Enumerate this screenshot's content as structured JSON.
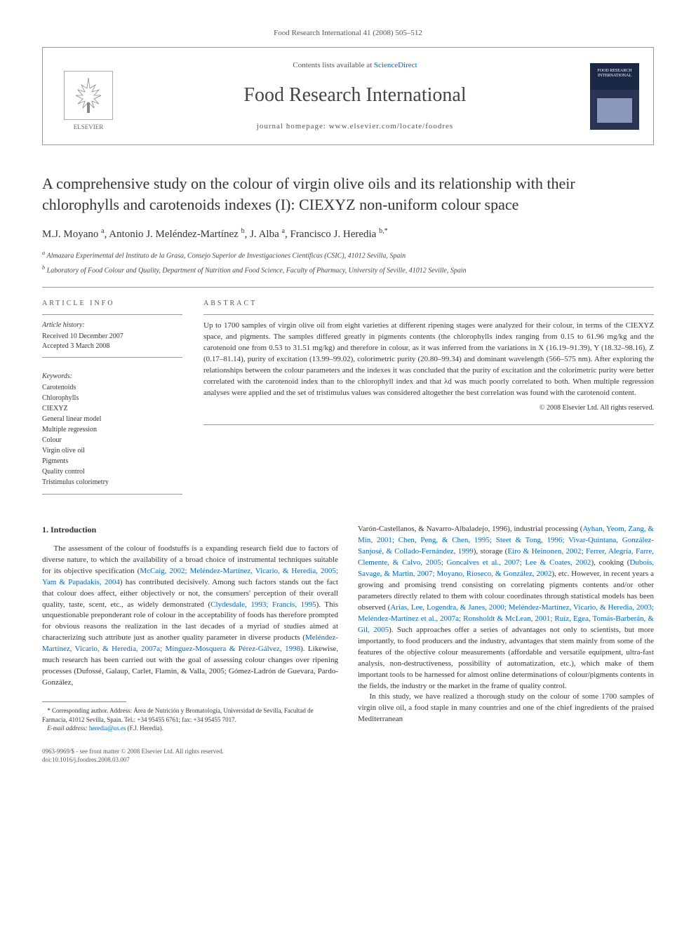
{
  "header_line": "Food Research International 41 (2008) 505–512",
  "contents_prefix": "Contents lists available at ",
  "contents_link": "ScienceDirect",
  "journal_name": "Food Research International",
  "homepage_label": "journal homepage: www.elsevier.com/locate/foodres",
  "elsevier_label": "ELSEVIER",
  "cover_label": "FOOD RESEARCH INTERNATIONAL",
  "title": "A comprehensive study on the colour of virgin olive oils and its relationship with their chlorophylls and carotenoids indexes (I): CIEXYZ non-uniform colour space",
  "authors_html": "M.J. Moyano <sup>a</sup>, Antonio J. Meléndez-Martínez <sup>b</sup>, J. Alba <sup>a</sup>, Francisco J. Heredia <sup>b,*</sup>",
  "affiliations": {
    "a": "Almazara Experimental del Instituto de la Grasa, Consejo Superior de Investigaciones Científicas (CSIC), 41012 Sevilla, Spain",
    "b": "Laboratory of Food Colour and Quality, Department of Nutrition and Food Science, Faculty of Pharmacy, University of Seville, 41012 Seville, Spain"
  },
  "article_info": {
    "heading": "ARTICLE INFO",
    "history_label": "Article history:",
    "received": "Received 10 December 2007",
    "accepted": "Accepted 3 March 2008",
    "keywords_label": "Keywords:",
    "keywords": [
      "Carotenoids",
      "Chlorophylls",
      "CIEXYZ",
      "General linear model",
      "Multiple regression",
      "Colour",
      "Virgin olive oil",
      "Pigments",
      "Quality control",
      "Tristimulus colorimetry"
    ]
  },
  "abstract": {
    "heading": "ABSTRACT",
    "text": "Up to 1700 samples of virgin olive oil from eight varieties at different ripening stages were analyzed for their colour, in terms of the CIEXYZ space, and pigments. The samples differed greatly in pigments contents (the chlorophylls index ranging from 0.15 to 61.96 mg/kg and the carotenoid one from 0.53 to 31.51 mg/kg) and therefore in colour, as it was inferred from the variations in X (16.19–91.39), Y (18.32–98.16), Z (0.17–81.14), purity of excitation (13.99–99.02), colorimetric purity (20.80–99.34) and dominant wavelength (566–575 nm). After exploring the relationships between the colour parameters and the indexes it was concluded that the purity of excitation and the colorimetric purity were better correlated with the carotenoid index than to the chlorophyll index and that λd was much poorly correlated to both. When multiple regression analyses were applied and the set of tristimulus values was considered altogether the best correlation was found with the carotenoid content.",
    "copyright": "© 2008 Elsevier Ltd. All rights reserved."
  },
  "intro": {
    "heading": "1. Introduction",
    "col1_para": "The assessment of the colour of foodstuffs is a expanding research field due to factors of diverse nature, to which the availability of a broad choice of instrumental techniques suitable for its objective specification (McCaig, 2002; Meléndez-Martínez, Vicario, & Heredia, 2005; Yam & Papadakis, 2004) has contributed decisively. Among such factors stands out the fact that colour does affect, either objectively or not, the consumers' perception of their overall quality, taste, scent, etc., as widely demonstrated (Clydesdale, 1993; Francis, 1995). This unquestionable preponderant role of colour in the acceptability of foods has therefore prompted for obvious reasons the realization in the last decades of a myriad of studies aimed at characterizing such attribute just as another quality parameter in diverse products (Meléndez-Martínez, Vicario, & Heredia, 2007a; Mínguez-Mosquera & Pérez-Gálvez, 1998). Likewise, much research has been carried out with the goal of assessing colour changes over ripening processes (Dufossé, Galaup, Carlet, Flamin, & Valla, 2005; Gómez-Ladrón de Guevara, Pardo-González,",
    "col2_para1": "Varón-Castellanos, & Navarro-Albaladejo, 1996), industrial processing (Ayhan, Yeom, Zang, & Min, 2001; Chen, Peng, & Chen, 1995; Steet & Tong, 1996; Vivar-Quintana, González-Sanjosé, & Collado-Fernández, 1999), storage (Eiro & Heinonen, 2002; Ferrer, Alegría, Farre, Clemente, & Calvo, 2005; Goncalves et al., 2007; Lee & Coates, 2002), cooking (Dubois, Savage, & Martin, 2007; Moyano, Rioseco, & González, 2002), etc. However, in recent years a growing and promising trend consisting on correlating pigments contents and/or other parameters directly related to them with colour coordinates through statistical models has been observed (Arias, Lee, Logendra, & Janes, 2000; Meléndez-Martínez, Vicario, & Heredia, 2003; Meléndez-Martínez et al., 2007a; Ronsholdt & McLean, 2001; Ruíz, Egea, Tomás-Barberán, & Gil, 2005). Such approaches offer a series of advantages not only to scientists, but more importantly, to food producers and the industry, advantages that stem mainly from some of the features of the objective colour measurements (affordable and versatile equipment, ultra-fast analysis, non-destructiveness, possibility of automatization, etc.), which make of them important tools to be harnessed for almost online determinations of colour/pigments contents in the fields, the industry or the market in the frame of quality control.",
    "col2_para2": "In this study, we have realized a thorough study on the colour of some 1700 samples of virgin olive oil, a food staple in many countries and one of the chief ingredients of the praised Mediterranean"
  },
  "footnote": {
    "corresponding": "* Corresponding author. Address: Área de Nutrición y Bromatología, Universidad de Sevilla, Facultad de Farmacia, 41012 Sevilla, Spain. Tel.: +34 95455 6761; fax: +34 95455 7017.",
    "email_label": "E-mail address:",
    "email": "heredia@us.es",
    "email_person": "(F.J. Heredia)."
  },
  "bottom": {
    "issn": "0963-9969/$ - see front matter © 2008 Elsevier Ltd. All rights reserved.",
    "doi": "doi:10.1016/j.foodres.2008.03.007"
  },
  "colors": {
    "link": "#0066cc",
    "text": "#333333",
    "muted": "#555555",
    "border": "#999999",
    "cover_top": "#1a2845"
  }
}
